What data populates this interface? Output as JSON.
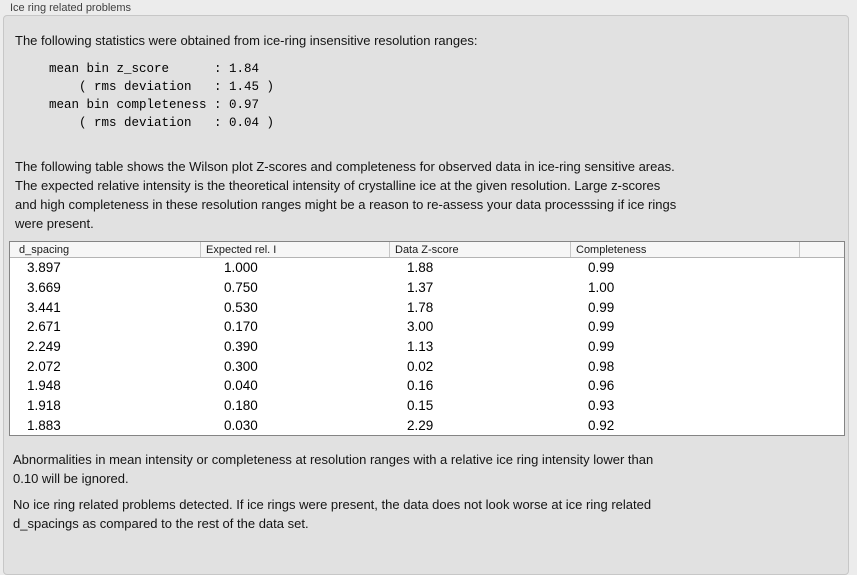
{
  "panel": {
    "title": "Ice ring related problems"
  },
  "stats": {
    "intro": "The following statistics were obtained from ice-ring insensitive resolution ranges:",
    "block": "mean bin z_score      : 1.84\n    ( rms deviation   : 1.45 )\nmean bin completeness : 0.97\n    ( rms deviation   : 0.04 )"
  },
  "description": "The following table shows the Wilson plot Z-scores and completeness for observed data in ice-ring sensitive areas.\nThe expected relative intensity is the theoretical intensity of crystalline ice at the given resolution. Large z-scores\nand high completeness in these resolution ranges might be a reason to re-assess your data processsing if ice rings\nwere present.",
  "table": {
    "columns": [
      "d_spacing",
      "Expected rel. I",
      "Data Z-score",
      "Completeness"
    ],
    "rows": [
      [
        "3.897",
        "1.000",
        "1.88",
        "0.99"
      ],
      [
        "3.669",
        "0.750",
        "1.37",
        "1.00"
      ],
      [
        "3.441",
        "0.530",
        "1.78",
        "0.99"
      ],
      [
        "2.671",
        "0.170",
        "3.00",
        "0.99"
      ],
      [
        "2.249",
        "0.390",
        "1.13",
        "0.99"
      ],
      [
        "2.072",
        "0.300",
        "0.02",
        "0.98"
      ],
      [
        "1.948",
        "0.040",
        "0.16",
        "0.96"
      ],
      [
        "1.918",
        "0.180",
        "0.15",
        "0.93"
      ],
      [
        "1.883",
        "0.030",
        "2.29",
        "0.92"
      ]
    ]
  },
  "notes": {
    "ignore_note": "Abnormalities in mean intensity or completeness at resolution ranges with a relative ice ring intensity lower than\n0.10 will be ignored.",
    "conclusion": "No ice ring related problems detected. If ice rings were present, the data does not look worse at ice ring related\nd_spacings as compared to the rest of the data set."
  }
}
